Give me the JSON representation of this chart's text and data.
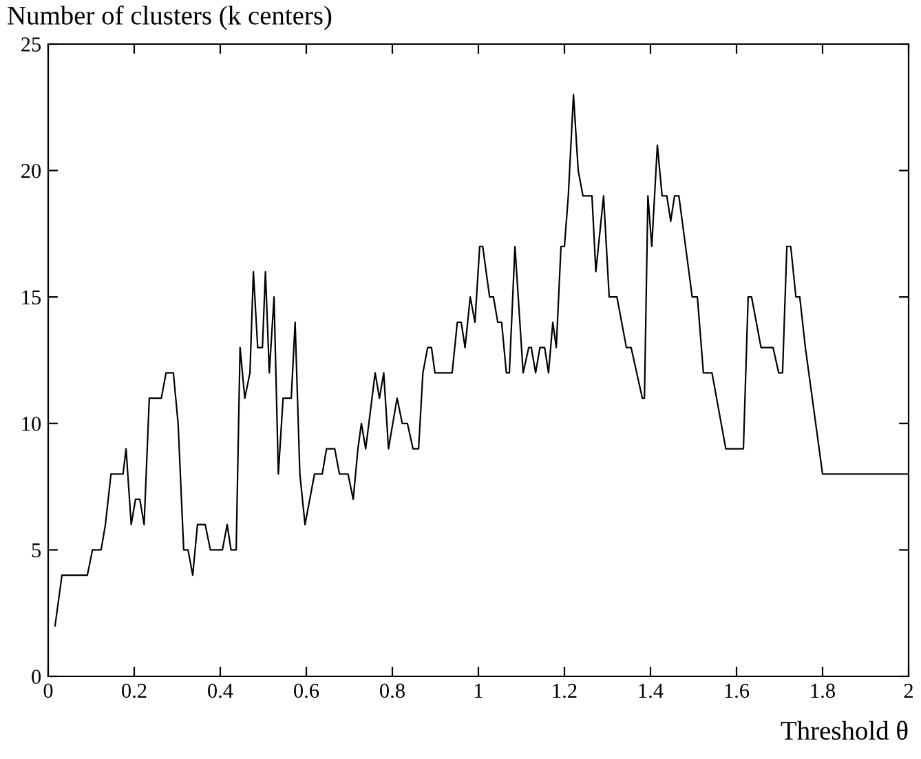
{
  "chart_data": {
    "type": "line",
    "ylabel": "Number of clusters (k centers)",
    "xlabel": "Threshold θ",
    "series": [
      {
        "color": "#000000",
        "x": [
          0.016,
          0.032,
          0.091,
          0.103,
          0.123,
          0.133,
          0.146,
          0.174,
          0.181,
          0.193,
          0.203,
          0.213,
          0.223,
          0.235,
          0.263,
          0.274,
          0.291,
          0.302,
          0.315,
          0.325,
          0.336,
          0.347,
          0.365,
          0.377,
          0.405,
          0.416,
          0.425,
          0.437,
          0.446,
          0.457,
          0.469,
          0.477,
          0.487,
          0.498,
          0.505,
          0.514,
          0.525,
          0.535,
          0.546,
          0.565,
          0.574,
          0.585,
          0.597,
          0.619,
          0.637,
          0.647,
          0.666,
          0.677,
          0.697,
          0.709,
          0.72,
          0.728,
          0.738,
          0.76,
          0.77,
          0.78,
          0.791,
          0.811,
          0.823,
          0.835,
          0.848,
          0.861,
          0.871,
          0.882,
          0.891,
          0.899,
          0.939,
          0.951,
          0.96,
          0.969,
          0.981,
          0.992,
          1.003,
          1.01,
          1.026,
          1.035,
          1.045,
          1.054,
          1.065,
          1.072,
          1.085,
          1.104,
          1.117,
          1.123,
          1.133,
          1.143,
          1.154,
          1.163,
          1.173,
          1.181,
          1.192,
          1.2,
          1.209,
          1.221,
          1.232,
          1.243,
          1.264,
          1.273,
          1.291,
          1.304,
          1.322,
          1.344,
          1.355,
          1.381,
          1.386,
          1.394,
          1.403,
          1.416,
          1.427,
          1.438,
          1.447,
          1.456,
          1.466,
          1.497,
          1.509,
          1.523,
          1.543,
          1.575,
          1.616,
          1.627,
          1.635,
          1.657,
          1.685,
          1.698,
          1.707,
          1.717,
          1.726,
          1.738,
          1.747,
          1.76,
          1.776,
          1.8,
          2.0
        ],
        "values": [
          2,
          4,
          4,
          5,
          5,
          6,
          8,
          8,
          9,
          6,
          7,
          7,
          6,
          11,
          11,
          12,
          12,
          10,
          5,
          5,
          4,
          6,
          6,
          5,
          5,
          6,
          5,
          5,
          13,
          11,
          12,
          16,
          13,
          13,
          16,
          12,
          15,
          8,
          11,
          11,
          14,
          8,
          6,
          8,
          8,
          9,
          9,
          8,
          8,
          7,
          9,
          10,
          9,
          12,
          11,
          12,
          9,
          11,
          10,
          10,
          9,
          9,
          12,
          13,
          13,
          12,
          12,
          14,
          14,
          13,
          15,
          14,
          17,
          17,
          15,
          15,
          14,
          14,
          12,
          12,
          17,
          12,
          13,
          13,
          12,
          13,
          13,
          12,
          14,
          13,
          17,
          17,
          19,
          23,
          20,
          19,
          19,
          16,
          19,
          15,
          15,
          13,
          13,
          11,
          11,
          19,
          17,
          21,
          19,
          19,
          18,
          19,
          19,
          15,
          15,
          12,
          12,
          9,
          9,
          15,
          15,
          13,
          13,
          12,
          12,
          17,
          17,
          15,
          15,
          13,
          11,
          8,
          8
        ]
      }
    ],
    "xlim": [
      0,
      2
    ],
    "xticks": [
      0,
      0.2,
      0.4,
      0.6,
      0.8,
      1,
      1.2,
      1.4,
      1.6,
      1.8,
      2
    ],
    "ylim": [
      0,
      25
    ],
    "yticks": [
      0,
      5,
      10,
      15,
      20,
      25
    ],
    "grid": false,
    "legend": false
  }
}
